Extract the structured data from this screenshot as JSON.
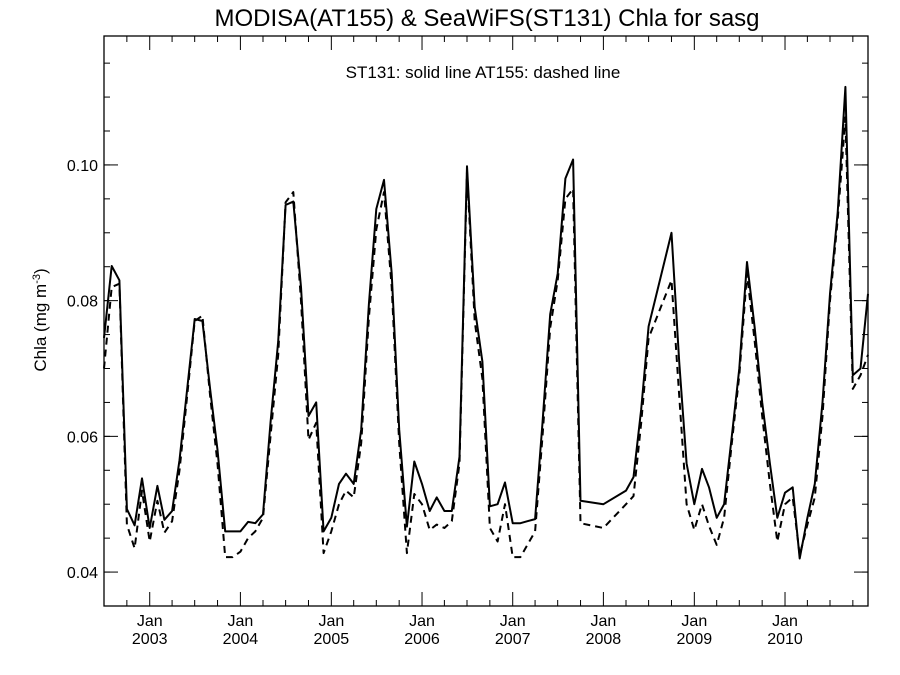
{
  "chart_data": {
    "type": "line",
    "title": "MODISA(AT155) & SeaWiFS(ST131)  Chla for sasg",
    "annotation": "ST131: solid line   AT155: dashed line",
    "ylabel": "Chla (mg m",
    "ylabel_superscript": "-3",
    "ylabel_suffix": ")",
    "ylim": [
      0.035,
      0.119
    ],
    "xlim": [
      "2002-07-01",
      "2010-12-01"
    ],
    "y_ticks": [
      0.04,
      0.06,
      0.08,
      0.1
    ],
    "y_tick_labels": [
      "0.04",
      "0.06",
      "0.08",
      "0.10"
    ],
    "x_ticks": [
      {
        "date": "2003-01-01",
        "top": "Jan",
        "bottom": "2003"
      },
      {
        "date": "2004-01-01",
        "top": "Jan",
        "bottom": "2004"
      },
      {
        "date": "2005-01-01",
        "top": "Jan",
        "bottom": "2005"
      },
      {
        "date": "2006-01-01",
        "top": "Jan",
        "bottom": "2006"
      },
      {
        "date": "2007-01-01",
        "top": "Jan",
        "bottom": "2007"
      },
      {
        "date": "2008-01-01",
        "top": "Jan",
        "bottom": "2008"
      },
      {
        "date": "2009-01-01",
        "top": "Jan",
        "bottom": "2009"
      },
      {
        "date": "2010-01-01",
        "top": "Jan",
        "bottom": "2010"
      }
    ],
    "series": [
      {
        "name": "ST131",
        "style": "solid",
        "color": "#000000",
        "points": [
          [
            "2002-07-01",
            0.0745
          ],
          [
            "2002-08-01",
            0.0851
          ],
          [
            "2002-09-01",
            0.083
          ],
          [
            "2002-10-01",
            0.0493
          ],
          [
            "2002-11-01",
            0.0469
          ],
          [
            "2002-12-01",
            0.0538
          ],
          [
            "2003-01-01",
            0.0465
          ],
          [
            "2003-02-01",
            0.0527
          ],
          [
            "2003-03-01",
            0.0477
          ],
          [
            "2003-04-01",
            0.049
          ],
          [
            "2003-05-01",
            0.0565
          ],
          [
            "2003-06-01",
            0.067
          ],
          [
            "2003-07-01",
            0.0773
          ],
          [
            "2003-08-01",
            0.077
          ],
          [
            "2003-09-01",
            0.067
          ],
          [
            "2003-10-01",
            0.058
          ],
          [
            "2003-11-01",
            0.046
          ],
          [
            "2003-12-01",
            0.046
          ],
          [
            "2004-01-01",
            0.046
          ],
          [
            "2004-02-01",
            0.0474
          ],
          [
            "2004-03-01",
            0.0472
          ],
          [
            "2004-04-01",
            0.0485
          ],
          [
            "2004-05-01",
            0.062
          ],
          [
            "2004-06-01",
            0.074
          ],
          [
            "2004-07-01",
            0.0941
          ],
          [
            "2004-08-01",
            0.0946
          ],
          [
            "2004-09-01",
            0.082
          ],
          [
            "2004-10-01",
            0.063
          ],
          [
            "2004-11-01",
            0.065
          ],
          [
            "2004-12-01",
            0.046
          ],
          [
            "2005-01-01",
            0.048
          ],
          [
            "2005-02-01",
            0.053
          ],
          [
            "2005-03-01",
            0.0545
          ],
          [
            "2005-04-01",
            0.053
          ],
          [
            "2005-05-01",
            0.061
          ],
          [
            "2005-06-01",
            0.0795
          ],
          [
            "2005-07-01",
            0.0935
          ],
          [
            "2005-08-01",
            0.0978
          ],
          [
            "2005-09-01",
            0.084
          ],
          [
            "2005-10-01",
            0.061
          ],
          [
            "2005-11-01",
            0.0467
          ],
          [
            "2005-12-01",
            0.0563
          ],
          [
            "2006-01-01",
            0.053
          ],
          [
            "2006-02-01",
            0.049
          ],
          [
            "2006-03-01",
            0.051
          ],
          [
            "2006-04-01",
            0.049
          ],
          [
            "2006-05-01",
            0.049
          ],
          [
            "2006-06-01",
            0.057
          ],
          [
            "2006-07-01",
            0.0998
          ],
          [
            "2006-08-01",
            0.079
          ],
          [
            "2006-09-01",
            0.071
          ],
          [
            "2006-10-01",
            0.0497
          ],
          [
            "2006-11-01",
            0.05
          ],
          [
            "2006-12-01",
            0.0532
          ],
          [
            "2007-01-01",
            0.0472
          ],
          [
            "2007-02-01",
            0.0472
          ],
          [
            "2007-03-01",
            0.0475
          ],
          [
            "2007-04-01",
            0.0478
          ],
          [
            "2007-05-01",
            0.062
          ],
          [
            "2007-06-01",
            0.078
          ],
          [
            "2007-07-01",
            0.084
          ],
          [
            "2007-08-01",
            0.098
          ],
          [
            "2007-09-01",
            0.1008
          ],
          [
            "2007-10-01",
            0.0505
          ],
          [
            "2008-01-01",
            0.05
          ],
          [
            "2008-04-01",
            0.052
          ],
          [
            "2008-05-01",
            0.054
          ],
          [
            "2008-06-01",
            0.064
          ],
          [
            "2008-07-01",
            0.0762
          ],
          [
            "2008-10-01",
            0.09
          ],
          [
            "2008-11-01",
            0.071
          ],
          [
            "2008-12-01",
            0.056
          ],
          [
            "2009-01-01",
            0.05
          ],
          [
            "2009-02-01",
            0.0552
          ],
          [
            "2009-03-01",
            0.0525
          ],
          [
            "2009-04-01",
            0.048
          ],
          [
            "2009-05-01",
            0.05
          ],
          [
            "2009-06-01",
            0.06
          ],
          [
            "2009-07-01",
            0.07
          ],
          [
            "2009-08-01",
            0.0857
          ],
          [
            "2009-09-01",
            0.076
          ],
          [
            "2009-10-01",
            0.065
          ],
          [
            "2009-11-01",
            0.056
          ],
          [
            "2009-12-01",
            0.048
          ],
          [
            "2010-01-01",
            0.0517
          ],
          [
            "2010-02-01",
            0.0525
          ],
          [
            "2010-03-01",
            0.042
          ],
          [
            "2010-04-01",
            0.048
          ],
          [
            "2010-05-01",
            0.053
          ],
          [
            "2010-06-01",
            0.065
          ],
          [
            "2010-07-01",
            0.081
          ],
          [
            "2010-08-01",
            0.093
          ],
          [
            "2010-09-01",
            0.1115
          ],
          [
            "2010-10-01",
            0.069
          ],
          [
            "2010-11-01",
            0.07
          ],
          [
            "2010-12-01",
            0.081
          ]
        ]
      },
      {
        "name": "AT155",
        "style": "dashed",
        "color": "#000000",
        "points": [
          [
            "2002-07-01",
            0.07
          ],
          [
            "2002-08-01",
            0.082
          ],
          [
            "2002-09-01",
            0.0825
          ],
          [
            "2002-10-01",
            0.047
          ],
          [
            "2002-11-01",
            0.0435
          ],
          [
            "2002-12-01",
            0.052
          ],
          [
            "2003-01-01",
            0.0445
          ],
          [
            "2003-02-01",
            0.0505
          ],
          [
            "2003-03-01",
            0.0458
          ],
          [
            "2003-04-01",
            0.0475
          ],
          [
            "2003-05-01",
            0.055
          ],
          [
            "2003-06-01",
            0.066
          ],
          [
            "2003-07-01",
            0.077
          ],
          [
            "2003-08-01",
            0.0778
          ],
          [
            "2003-09-01",
            0.066
          ],
          [
            "2003-10-01",
            0.056
          ],
          [
            "2003-11-01",
            0.0422
          ],
          [
            "2003-12-01",
            0.0422
          ],
          [
            "2004-01-01",
            0.043
          ],
          [
            "2004-02-01",
            0.045
          ],
          [
            "2004-03-01",
            0.046
          ],
          [
            "2004-04-01",
            0.048
          ],
          [
            "2004-05-01",
            0.06
          ],
          [
            "2004-06-01",
            0.072
          ],
          [
            "2004-07-01",
            0.0945
          ],
          [
            "2004-08-01",
            0.096
          ],
          [
            "2004-09-01",
            0.08
          ],
          [
            "2004-10-01",
            0.0595
          ],
          [
            "2004-11-01",
            0.062
          ],
          [
            "2004-12-01",
            0.0428
          ],
          [
            "2005-01-01",
            0.046
          ],
          [
            "2005-02-01",
            0.05
          ],
          [
            "2005-03-01",
            0.052
          ],
          [
            "2005-04-01",
            0.051
          ],
          [
            "2005-05-01",
            0.059
          ],
          [
            "2005-06-01",
            0.0775
          ],
          [
            "2005-07-01",
            0.0905
          ],
          [
            "2005-08-01",
            0.096
          ],
          [
            "2005-09-01",
            0.082
          ],
          [
            "2005-10-01",
            0.059
          ],
          [
            "2005-11-01",
            0.0428
          ],
          [
            "2005-12-01",
            0.0515
          ],
          [
            "2006-01-01",
            0.05
          ],
          [
            "2006-02-01",
            0.0462
          ],
          [
            "2006-03-01",
            0.047
          ],
          [
            "2006-04-01",
            0.0465
          ],
          [
            "2006-05-01",
            0.0475
          ],
          [
            "2006-06-01",
            0.056
          ],
          [
            "2006-07-01",
            0.099
          ],
          [
            "2006-08-01",
            0.077
          ],
          [
            "2006-09-01",
            0.0685
          ],
          [
            "2006-10-01",
            0.0465
          ],
          [
            "2006-11-01",
            0.0445
          ],
          [
            "2006-12-01",
            0.05
          ],
          [
            "2007-01-01",
            0.0422
          ],
          [
            "2007-02-01",
            0.0422
          ],
          [
            "2007-03-01",
            0.044
          ],
          [
            "2007-04-01",
            0.046
          ],
          [
            "2007-05-01",
            0.06
          ],
          [
            "2007-06-01",
            0.076
          ],
          [
            "2007-07-01",
            0.083
          ],
          [
            "2007-08-01",
            0.095
          ],
          [
            "2007-09-01",
            0.0965
          ],
          [
            "2007-10-01",
            0.0472
          ],
          [
            "2008-01-01",
            0.0465
          ],
          [
            "2008-04-01",
            0.05
          ],
          [
            "2008-05-01",
            0.0512
          ],
          [
            "2008-06-01",
            0.062
          ],
          [
            "2008-07-01",
            0.0745
          ],
          [
            "2008-10-01",
            0.083
          ],
          [
            "2008-11-01",
            0.066
          ],
          [
            "2008-12-01",
            0.05
          ],
          [
            "2009-01-01",
            0.0462
          ],
          [
            "2009-02-01",
            0.05
          ],
          [
            "2009-03-01",
            0.0468
          ],
          [
            "2009-04-01",
            0.044
          ],
          [
            "2009-05-01",
            0.048
          ],
          [
            "2009-06-01",
            0.059
          ],
          [
            "2009-07-01",
            0.069
          ],
          [
            "2009-08-01",
            0.084
          ],
          [
            "2009-09-01",
            0.074
          ],
          [
            "2009-10-01",
            0.063
          ],
          [
            "2009-11-01",
            0.053
          ],
          [
            "2009-12-01",
            0.0445
          ],
          [
            "2010-01-01",
            0.05
          ],
          [
            "2010-02-01",
            0.051
          ],
          [
            "2010-03-01",
            0.0425
          ],
          [
            "2010-04-01",
            0.047
          ],
          [
            "2010-05-01",
            0.051
          ],
          [
            "2010-06-01",
            0.063
          ],
          [
            "2010-07-01",
            0.08
          ],
          [
            "2010-08-01",
            0.092
          ],
          [
            "2010-09-01",
            0.107
          ],
          [
            "2010-10-01",
            0.067
          ],
          [
            "2010-11-01",
            0.069
          ],
          [
            "2010-12-01",
            0.072
          ]
        ]
      }
    ],
    "grid": false,
    "legend": "none"
  }
}
